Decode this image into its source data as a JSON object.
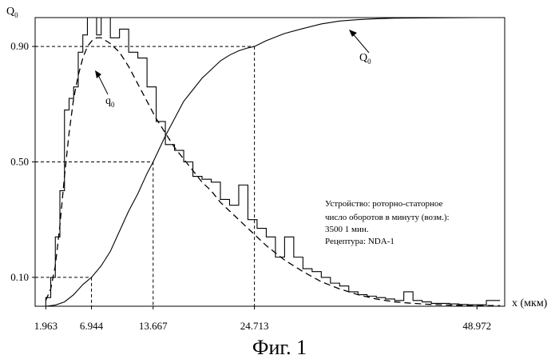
{
  "caption": "Фиг. 1",
  "chart_data": {
    "type": "line",
    "ylabel": "Q",
    "ylabel_sub": "0",
    "xlabel": "x (мкм)",
    "xlim": [
      0.8,
      52.0
    ],
    "ylim": [
      0,
      1.0
    ],
    "grid": false,
    "xticks": [
      {
        "value": 1.963,
        "label": "1.963"
      },
      {
        "value": 6.944,
        "label": "6.944"
      },
      {
        "value": 13.667,
        "label": "13.667"
      },
      {
        "value": 24.713,
        "label": "24.713"
      },
      {
        "value": 48.972,
        "label": "48.972"
      }
    ],
    "yticks": [
      {
        "value": 0.1,
        "label": "0.10"
      },
      {
        "value": 0.5,
        "label": "0.50"
      },
      {
        "value": 0.9,
        "label": "0.90"
      }
    ],
    "percentile_guides": [
      {
        "y": 0.1,
        "x": 6.944
      },
      {
        "y": 0.5,
        "x": 13.667
      },
      {
        "y": 0.9,
        "x": 24.713
      }
    ],
    "series": [
      {
        "name": "Q0",
        "label_main": "Q",
        "label_sub": "0",
        "style": "solid",
        "x": [
          1.963,
          3.0,
          4.0,
          5.0,
          6.0,
          6.944,
          8.0,
          9.0,
          10.0,
          11.0,
          12.0,
          13.0,
          13.667,
          15.0,
          16.0,
          17.0,
          18.0,
          19.0,
          20.0,
          21.0,
          22.0,
          23.0,
          24.0,
          24.713,
          26.0,
          28.0,
          30.0,
          32.0,
          34.0,
          36.0,
          38.0,
          40.0,
          44.0,
          48.972,
          51.5
        ],
        "y": [
          0.0,
          0.004,
          0.015,
          0.04,
          0.075,
          0.1,
          0.14,
          0.19,
          0.26,
          0.33,
          0.39,
          0.46,
          0.5,
          0.59,
          0.65,
          0.71,
          0.75,
          0.79,
          0.82,
          0.85,
          0.87,
          0.885,
          0.895,
          0.9,
          0.92,
          0.945,
          0.962,
          0.978,
          0.988,
          0.993,
          0.996,
          0.998,
          0.999,
          1.0,
          1.0
        ]
      },
      {
        "name": "q0 histogram",
        "label_main": "q",
        "label_sub": "0",
        "style": "step",
        "x": [
          1.963,
          2.5,
          3.0,
          3.5,
          4.0,
          4.5,
          5.0,
          5.5,
          6.0,
          6.5,
          7.0,
          7.5,
          8.0,
          9.0,
          10.0,
          11.0,
          12.0,
          13.0,
          14.0,
          15.0,
          16.0,
          17.0,
          18.0,
          19.0,
          20.0,
          21.0,
          22.0,
          23.0,
          24.0,
          25.0,
          26.0,
          27.0,
          28.0,
          29.0,
          30.0,
          31.0,
          32.0,
          33.0,
          34.0,
          35.0,
          36.0,
          37.0,
          38.0,
          39.0,
          40.0,
          41.0,
          42.0,
          43.0,
          44.0,
          45.0,
          46.0,
          47.0,
          48.0,
          49.0,
          50.0,
          51.5
        ],
        "y": [
          0.03,
          0.1,
          0.24,
          0.4,
          0.68,
          0.72,
          0.76,
          0.88,
          0.94,
          1.0,
          1.0,
          0.94,
          1.0,
          0.93,
          0.96,
          0.88,
          0.86,
          0.76,
          0.64,
          0.56,
          0.54,
          0.5,
          0.45,
          0.44,
          0.43,
          0.37,
          0.35,
          0.42,
          0.3,
          0.27,
          0.24,
          0.17,
          0.24,
          0.17,
          0.13,
          0.12,
          0.1,
          0.08,
          0.07,
          0.05,
          0.04,
          0.035,
          0.03,
          0.025,
          0.02,
          0.05,
          0.02,
          0.015,
          0.01,
          0.01,
          0.008,
          0.006,
          0.005,
          0.005,
          0.02,
          0.02
        ]
      },
      {
        "name": "q0",
        "style": "dashed",
        "x": [
          1.963,
          2.5,
          3.0,
          3.5,
          4.0,
          4.5,
          5.0,
          5.5,
          6.0,
          6.5,
          7.0,
          7.5,
          8.0,
          9.0,
          10.0,
          11.0,
          12.0,
          13.0,
          14.0,
          15.0,
          16.0,
          17.0,
          18.0,
          19.0,
          20.0,
          21.0,
          22.0,
          23.0,
          24.0,
          25.0,
          26.0,
          28.0,
          30.0,
          32.0,
          34.0,
          36.0,
          38.0,
          40.0,
          42.0,
          44.0,
          46.0,
          48.0,
          51.5
        ],
        "y": [
          0.02,
          0.06,
          0.14,
          0.28,
          0.45,
          0.6,
          0.72,
          0.8,
          0.86,
          0.9,
          0.92,
          0.93,
          0.93,
          0.91,
          0.88,
          0.83,
          0.77,
          0.71,
          0.65,
          0.6,
          0.55,
          0.51,
          0.47,
          0.43,
          0.4,
          0.36,
          0.33,
          0.3,
          0.27,
          0.24,
          0.21,
          0.16,
          0.12,
          0.085,
          0.06,
          0.04,
          0.025,
          0.015,
          0.01,
          0.006,
          0.004,
          0.003,
          0.002
        ]
      }
    ],
    "annotation": {
      "lines": [
        "Устройство: роторно-статорное",
        "число оборотов в минуту (возм.):",
        "3500 1 мин.",
        "Рецептура: NDA-1"
      ]
    }
  }
}
